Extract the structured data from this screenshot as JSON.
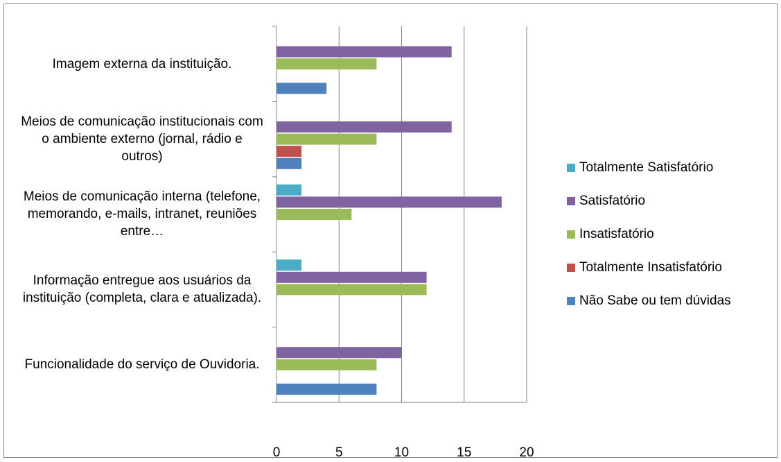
{
  "chart_data": {
    "type": "barh",
    "categories": [
      "Funcionalidade do serviço de Ouvidoria.",
      "Informação entregue aos usuários da instituição (completa, clara e atualizada).",
      "Meios de comunicação interna (telefone, memorando, e-mails, intranet, reuniões entre…",
      "Meios de comunicação institucionais com o ambiente externo (jornal, rádio e outros)",
      "Imagem externa da instituição."
    ],
    "series": [
      {
        "name": "Não Sabe ou tem dúvidas",
        "color": "#4f81bd",
        "values": [
          8,
          0,
          0,
          2,
          4
        ]
      },
      {
        "name": "Totalmente Insatisfatório",
        "color": "#c0504d",
        "values": [
          0,
          0,
          0,
          2,
          0
        ]
      },
      {
        "name": "Insatisfatório",
        "color": "#9bbb59",
        "values": [
          8,
          12,
          6,
          8,
          8
        ]
      },
      {
        "name": "Satisfatório",
        "color": "#8064a2",
        "values": [
          10,
          12,
          18,
          14,
          14
        ]
      },
      {
        "name": "Totalmente Satisfatório",
        "color": "#4bacc6",
        "values": [
          0,
          2,
          2,
          0,
          0
        ]
      }
    ],
    "xlim": [
      0,
      20
    ],
    "xticks": [
      0,
      5,
      10,
      15,
      20
    ],
    "grid": true,
    "legend": "right"
  }
}
